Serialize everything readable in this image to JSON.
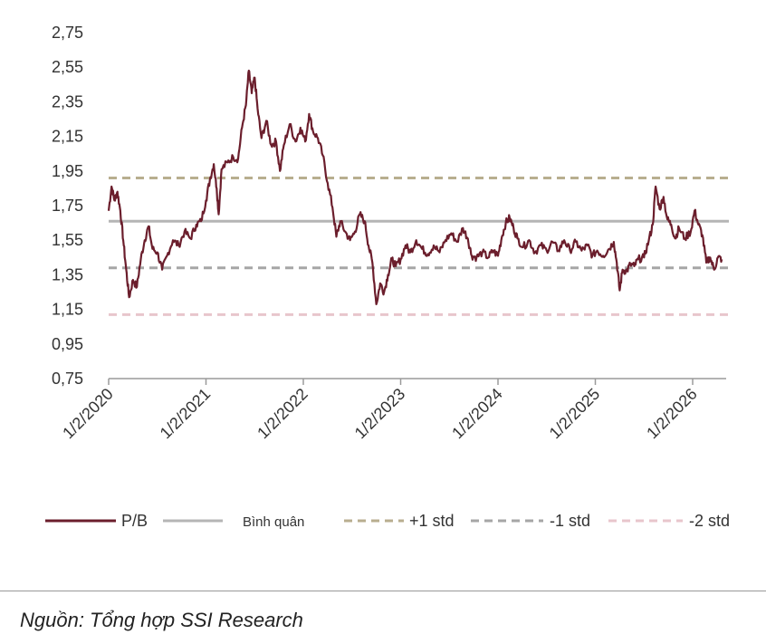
{
  "source": "Nguồn: Tổng hợp SSI Research",
  "colors": {
    "pb": "#6b1e2c",
    "mean": "#b5b5b5",
    "plus1": "#b8ae8f",
    "minus1": "#a6a6a6",
    "minus2": "#e8c6cc",
    "axis": "#9a9a9a"
  },
  "chart_data": {
    "type": "line",
    "ylim": [
      0.75,
      2.75
    ],
    "yticks": [
      "2,75",
      "2,55",
      "2,35",
      "2,15",
      "1,95",
      "1,75",
      "1,55",
      "1,35",
      "1,15",
      "0,95",
      "0,75"
    ],
    "ytick_values": [
      2.75,
      2.55,
      2.35,
      2.15,
      1.95,
      1.75,
      1.55,
      1.35,
      1.15,
      0.95,
      0.75
    ],
    "xticks": [
      "1/2/2020",
      "1/2/2021",
      "1/2/2022",
      "1/2/2023",
      "1/2/2024",
      "1/2/2025",
      "1/2/2026"
    ],
    "xtick_values": [
      2020.0,
      2021.0,
      2022.0,
      2023.0,
      2024.0,
      2025.0,
      2026.0
    ],
    "xlim": [
      2020.0,
      2026.33
    ],
    "reference_lines": [
      {
        "name": "Bình quân",
        "value": 1.66,
        "style": "solid"
      },
      {
        "name": "+1 std",
        "value": 1.91,
        "style": "dashed"
      },
      {
        "name": "-1 std",
        "value": 1.39,
        "style": "dashed"
      },
      {
        "name": "-2 std",
        "value": 1.12,
        "style": "dashed"
      }
    ],
    "series": [
      {
        "name": "P/B",
        "points": [
          [
            2020.0,
            1.72
          ],
          [
            2020.03,
            1.86
          ],
          [
            2020.06,
            1.78
          ],
          [
            2020.09,
            1.83
          ],
          [
            2020.12,
            1.72
          ],
          [
            2020.15,
            1.55
          ],
          [
            2020.18,
            1.38
          ],
          [
            2020.21,
            1.22
          ],
          [
            2020.25,
            1.32
          ],
          [
            2020.29,
            1.28
          ],
          [
            2020.33,
            1.44
          ],
          [
            2020.37,
            1.55
          ],
          [
            2020.41,
            1.63
          ],
          [
            2020.45,
            1.5
          ],
          [
            2020.5,
            1.48
          ],
          [
            2020.55,
            1.38
          ],
          [
            2020.6,
            1.46
          ],
          [
            2020.66,
            1.55
          ],
          [
            2020.72,
            1.52
          ],
          [
            2020.78,
            1.6
          ],
          [
            2020.84,
            1.56
          ],
          [
            2020.9,
            1.64
          ],
          [
            2020.95,
            1.66
          ],
          [
            2021.0,
            1.78
          ],
          [
            2021.04,
            1.9
          ],
          [
            2021.08,
            1.99
          ],
          [
            2021.11,
            1.85
          ],
          [
            2021.13,
            1.7
          ],
          [
            2021.16,
            1.96
          ],
          [
            2021.22,
            2.0
          ],
          [
            2021.28,
            2.03
          ],
          [
            2021.33,
            2.02
          ],
          [
            2021.37,
            2.2
          ],
          [
            2021.41,
            2.33
          ],
          [
            2021.44,
            2.53
          ],
          [
            2021.47,
            2.4
          ],
          [
            2021.5,
            2.49
          ],
          [
            2021.53,
            2.31
          ],
          [
            2021.57,
            2.14
          ],
          [
            2021.62,
            2.24
          ],
          [
            2021.67,
            2.1
          ],
          [
            2021.72,
            2.12
          ],
          [
            2021.76,
            1.95
          ],
          [
            2021.8,
            2.1
          ],
          [
            2021.86,
            2.22
          ],
          [
            2021.92,
            2.12
          ],
          [
            2021.97,
            2.2
          ],
          [
            2022.02,
            2.12
          ],
          [
            2022.06,
            2.28
          ],
          [
            2022.1,
            2.18
          ],
          [
            2022.15,
            2.14
          ],
          [
            2022.2,
            2.04
          ],
          [
            2022.25,
            1.88
          ],
          [
            2022.3,
            1.74
          ],
          [
            2022.34,
            1.57
          ],
          [
            2022.38,
            1.66
          ],
          [
            2022.43,
            1.6
          ],
          [
            2022.48,
            1.55
          ],
          [
            2022.53,
            1.6
          ],
          [
            2022.58,
            1.7
          ],
          [
            2022.63,
            1.66
          ],
          [
            2022.67,
            1.52
          ],
          [
            2022.71,
            1.42
          ],
          [
            2022.75,
            1.18
          ],
          [
            2022.79,
            1.3
          ],
          [
            2022.83,
            1.25
          ],
          [
            2022.87,
            1.35
          ],
          [
            2022.91,
            1.44
          ],
          [
            2022.95,
            1.4
          ],
          [
            2023.0,
            1.44
          ],
          [
            2023.05,
            1.52
          ],
          [
            2023.1,
            1.48
          ],
          [
            2023.16,
            1.55
          ],
          [
            2023.22,
            1.5
          ],
          [
            2023.28,
            1.47
          ],
          [
            2023.34,
            1.52
          ],
          [
            2023.4,
            1.48
          ],
          [
            2023.46,
            1.55
          ],
          [
            2023.52,
            1.59
          ],
          [
            2023.58,
            1.54
          ],
          [
            2023.64,
            1.62
          ],
          [
            2023.69,
            1.56
          ],
          [
            2023.73,
            1.46
          ],
          [
            2023.78,
            1.45
          ],
          [
            2023.84,
            1.48
          ],
          [
            2023.9,
            1.45
          ],
          [
            2023.95,
            1.49
          ],
          [
            2024.0,
            1.46
          ],
          [
            2024.04,
            1.57
          ],
          [
            2024.08,
            1.65
          ],
          [
            2024.12,
            1.68
          ],
          [
            2024.16,
            1.62
          ],
          [
            2024.2,
            1.56
          ],
          [
            2024.26,
            1.51
          ],
          [
            2024.32,
            1.55
          ],
          [
            2024.38,
            1.48
          ],
          [
            2024.44,
            1.52
          ],
          [
            2024.5,
            1.49
          ],
          [
            2024.56,
            1.54
          ],
          [
            2024.62,
            1.49
          ],
          [
            2024.68,
            1.55
          ],
          [
            2024.74,
            1.49
          ],
          [
            2024.8,
            1.54
          ],
          [
            2024.86,
            1.49
          ],
          [
            2024.92,
            1.52
          ],
          [
            2024.97,
            1.46
          ],
          [
            2025.02,
            1.49
          ],
          [
            2025.08,
            1.46
          ],
          [
            2025.14,
            1.5
          ],
          [
            2025.19,
            1.54
          ],
          [
            2025.22,
            1.42
          ],
          [
            2025.25,
            1.26
          ],
          [
            2025.28,
            1.38
          ],
          [
            2025.32,
            1.37
          ],
          [
            2025.36,
            1.41
          ],
          [
            2025.4,
            1.4
          ],
          [
            2025.44,
            1.44
          ],
          [
            2025.5,
            1.45
          ],
          [
            2025.55,
            1.55
          ],
          [
            2025.59,
            1.64
          ],
          [
            2025.62,
            1.86
          ],
          [
            2025.66,
            1.73
          ],
          [
            2025.7,
            1.8
          ],
          [
            2025.74,
            1.67
          ],
          [
            2025.78,
            1.64
          ],
          [
            2025.82,
            1.56
          ],
          [
            2025.86,
            1.62
          ],
          [
            2025.92,
            1.56
          ],
          [
            2025.98,
            1.6
          ],
          [
            2026.02,
            1.72
          ],
          [
            2026.06,
            1.64
          ],
          [
            2026.1,
            1.58
          ],
          [
            2026.14,
            1.42
          ],
          [
            2026.18,
            1.45
          ],
          [
            2026.22,
            1.38
          ],
          [
            2026.26,
            1.45
          ],
          [
            2026.3,
            1.44
          ]
        ]
      }
    ],
    "legend": [
      {
        "label": "P/B",
        "style": "solid",
        "color_key": "pb"
      },
      {
        "label": "Bình quân",
        "style": "solid",
        "color_key": "mean"
      },
      {
        "label": "+1 std",
        "style": "dashed",
        "color_key": "plus1"
      },
      {
        "label": "-1 std",
        "style": "dashed",
        "color_key": "minus1"
      },
      {
        "label": "-2 std",
        "style": "dashed",
        "color_key": "minus2"
      }
    ],
    "legend_position": "bottom",
    "grid": false
  }
}
